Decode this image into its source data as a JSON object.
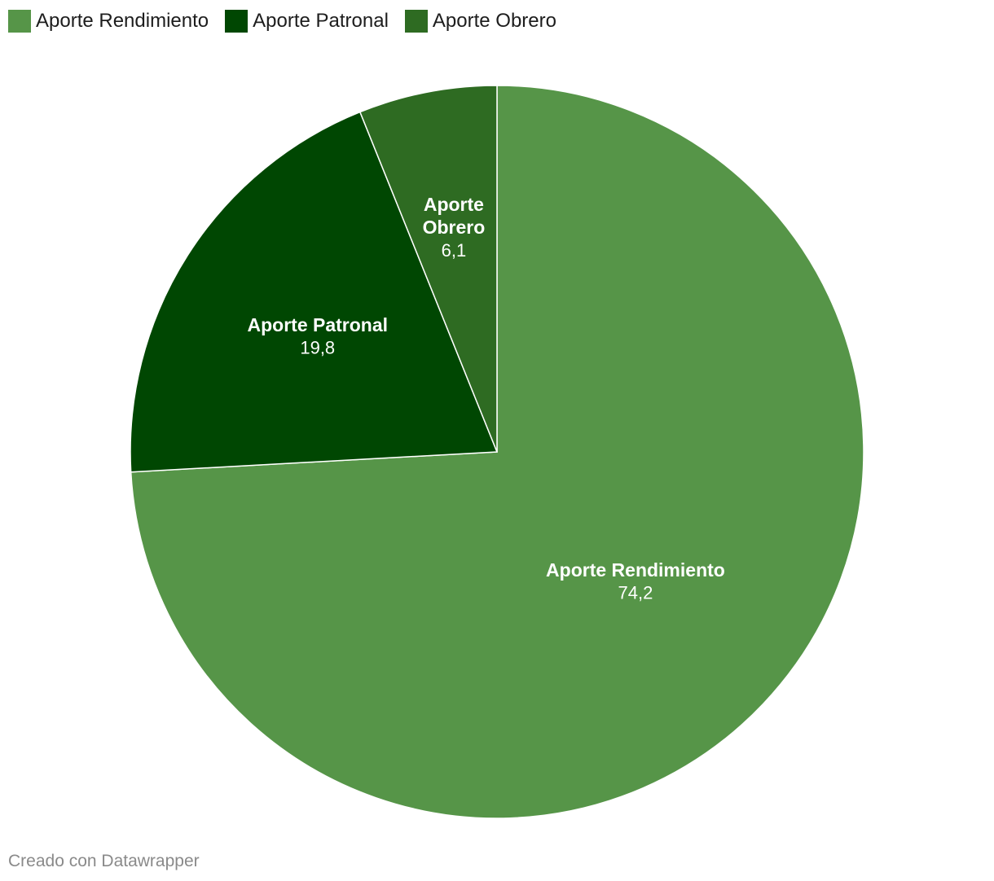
{
  "chart_data": {
    "type": "pie",
    "categories": [
      "Aporte Rendimiento",
      "Aporte Patronal",
      "Aporte Obrero"
    ],
    "values": [
      74.2,
      19.8,
      6.1
    ],
    "value_labels": [
      "74,2",
      "19,8",
      "6,1"
    ],
    "label_lines": [
      [
        "Aporte Rendimiento"
      ],
      [
        "Aporte Patronal"
      ],
      [
        "Aporte",
        "Obrero"
      ]
    ],
    "colors": [
      "#569548",
      "#004702",
      "#2e6b22"
    ],
    "legend": {
      "placement": "top-left",
      "items": [
        {
          "label": "Aporte Rendimiento",
          "color": "#569548"
        },
        {
          "label": "Aporte Patronal",
          "color": "#004702"
        },
        {
          "label": "Aporte Obrero",
          "color": "#2e6b22"
        }
      ]
    }
  },
  "footer": {
    "credit": "Creado con Datawrapper"
  }
}
